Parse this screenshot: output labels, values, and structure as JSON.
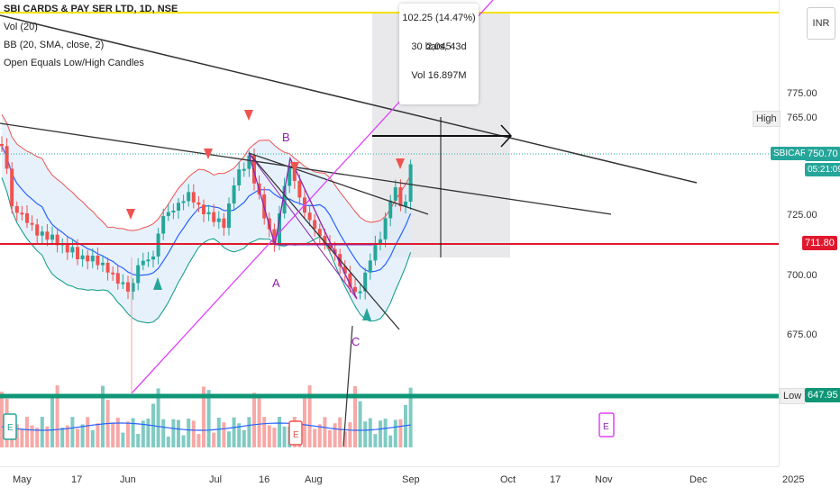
{
  "legend": {
    "title": "SBI CARDS & PAY SER LTD, 1D, NSE",
    "vol": "Vol (20)",
    "bb": "BB (20, SMA, close, 2)",
    "indicator": "Open Equals Low/High Candles"
  },
  "currency": "INR",
  "measure": {
    "change": "102.25 (14.47%) 2,045",
    "bars": "30 bars, 43d",
    "vol": "Vol 16.897M"
  },
  "price_axis": {
    "ticks": [
      "775.00",
      "725.00",
      "700.00",
      "675.00"
    ],
    "high_tag": "High",
    "high_value": "765.00",
    "symbol_tag": "SBICARD",
    "last_price": "750.70",
    "countdown": "05:21:09",
    "level_red": "711.80",
    "low_tag": "Low",
    "low_value": "647.95"
  },
  "time_axis": {
    "ticks": [
      "May",
      "17",
      "Jun",
      "Jul",
      "16",
      "Aug",
      "Sep",
      "Oct",
      "17",
      "Nov",
      "Dec",
      "2025"
    ]
  },
  "chart_labels": {
    "A": "A",
    "B": "B",
    "C": "C",
    "earnings": "E"
  },
  "colors": {
    "up": "#26a69a",
    "down": "#ef5350",
    "bb_upper": "#ef5350",
    "bb_basis": "#2962ff",
    "bb_lower": "#089981",
    "fill": "#e3f2fd",
    "yellow_line": "#f5e100",
    "teal_line": "#0e9676",
    "red_level": "#e0182d",
    "pattern": "#8e24aa",
    "magenta": "#e040fb"
  }
}
